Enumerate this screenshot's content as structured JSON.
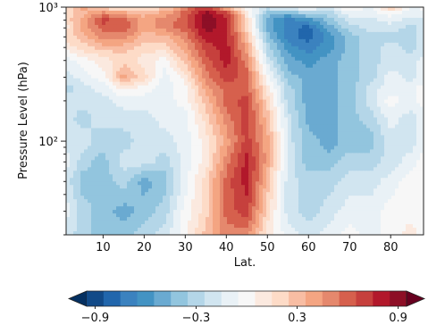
{
  "chart_data": {
    "type": "heatmap",
    "title": "",
    "xlabel": "Lat.",
    "ylabel": "Pressure Level (hPa)",
    "x": [
      1,
      5,
      10,
      15,
      20,
      25,
      30,
      35,
      40,
      45,
      50,
      55,
      60,
      65,
      70,
      75,
      80,
      85,
      88
    ],
    "y": [
      1000,
      900,
      800,
      700,
      600,
      500,
      400,
      300,
      250,
      200,
      150,
      100,
      70,
      50,
      30,
      20
    ],
    "xlim": [
      1,
      88
    ],
    "ylim": [
      1000,
      20
    ],
    "yscale": "log",
    "xticks": [
      10,
      20,
      30,
      40,
      50,
      60,
      70,
      80
    ],
    "xtick_labels": [
      "10",
      "20",
      "30",
      "40",
      "50",
      "60",
      "70",
      "80"
    ],
    "yticks": [
      1000,
      100
    ],
    "ytick_labels": [
      "10³",
      "10²"
    ],
    "values": [
      [
        0.1,
        0.4,
        0.2,
        0.1,
        0.2,
        0.2,
        0.5,
        0.7,
        0.3,
        0.0,
        -0.2,
        -0.1,
        0.0,
        -0.2,
        0.1,
        -0.1,
        0.3,
        -0.1,
        0.0
      ],
      [
        0.2,
        0.3,
        0.5,
        0.4,
        0.3,
        0.4,
        0.6,
        0.9,
        0.7,
        0.1,
        -0.4,
        -0.5,
        -0.3,
        -0.3,
        -0.1,
        -0.1,
        0.0,
        -0.1,
        -0.1
      ],
      [
        0.2,
        0.4,
        0.7,
        0.6,
        0.4,
        0.5,
        0.6,
        0.9,
        0.8,
        0.2,
        -0.5,
        -0.7,
        -0.6,
        -0.4,
        -0.2,
        -0.2,
        -0.1,
        -0.2,
        -0.2
      ],
      [
        0.1,
        0.4,
        0.6,
        0.6,
        0.4,
        0.5,
        0.6,
        0.9,
        0.8,
        0.2,
        -0.5,
        -0.7,
        -0.8,
        -0.5,
        -0.3,
        -0.2,
        -0.2,
        -0.3,
        -0.2
      ],
      [
        0.2,
        0.3,
        0.5,
        0.5,
        0.3,
        0.3,
        0.5,
        0.8,
        0.8,
        0.3,
        -0.4,
        -0.7,
        -0.8,
        -0.6,
        -0.4,
        -0.3,
        -0.3,
        -0.3,
        -0.2
      ],
      [
        0.1,
        0.2,
        0.3,
        0.3,
        0.2,
        0.2,
        0.4,
        0.7,
        0.8,
        0.4,
        -0.3,
        -0.6,
        -0.7,
        -0.6,
        -0.4,
        -0.3,
        -0.2,
        -0.3,
        -0.2
      ],
      [
        -0.1,
        0.0,
        0.1,
        0.2,
        0.1,
        0.0,
        0.3,
        0.6,
        0.8,
        0.5,
        -0.2,
        -0.5,
        -0.6,
        -0.5,
        -0.4,
        -0.3,
        -0.2,
        -0.2,
        -0.1
      ],
      [
        -0.2,
        -0.1,
        0.0,
        0.4,
        0.2,
        -0.1,
        0.1,
        0.5,
        0.7,
        0.6,
        0.0,
        -0.4,
        -0.5,
        -0.5,
        -0.4,
        -0.3,
        -0.1,
        -0.2,
        -0.1
      ],
      [
        -0.3,
        -0.2,
        -0.1,
        0.1,
        0.0,
        -0.1,
        0.0,
        0.4,
        0.6,
        0.6,
        0.1,
        -0.3,
        -0.5,
        -0.5,
        -0.4,
        -0.2,
        -0.1,
        -0.1,
        0.0
      ],
      [
        -0.2,
        -0.2,
        -0.2,
        -0.1,
        -0.1,
        -0.1,
        0.0,
        0.3,
        0.6,
        0.7,
        0.2,
        -0.3,
        -0.5,
        -0.5,
        -0.4,
        -0.2,
        0.0,
        -0.1,
        0.0
      ],
      [
        -0.2,
        -0.3,
        -0.2,
        -0.2,
        -0.2,
        -0.1,
        -0.1,
        0.2,
        0.5,
        0.7,
        0.3,
        -0.2,
        -0.5,
        -0.5,
        -0.4,
        -0.3,
        -0.1,
        -0.2,
        -0.1
      ],
      [
        -0.2,
        -0.2,
        -0.3,
        -0.3,
        -0.2,
        -0.2,
        -0.1,
        0.1,
        0.4,
        0.7,
        0.4,
        -0.2,
        -0.4,
        -0.5,
        -0.4,
        -0.4,
        -0.2,
        -0.2,
        -0.1
      ],
      [
        -0.1,
        -0.3,
        -0.4,
        -0.2,
        -0.2,
        -0.3,
        -0.1,
        0.1,
        0.5,
        0.8,
        0.4,
        -0.2,
        -0.4,
        -0.4,
        -0.3,
        -0.3,
        -0.2,
        -0.1,
        0.0
      ],
      [
        -0.2,
        -0.4,
        -0.4,
        -0.3,
        -0.5,
        -0.4,
        -0.1,
        0.2,
        0.6,
        0.8,
        0.3,
        -0.2,
        -0.3,
        -0.3,
        -0.2,
        -0.2,
        -0.1,
        0.0,
        0.0
      ],
      [
        -0.1,
        -0.3,
        -0.4,
        -0.5,
        -0.4,
        -0.3,
        0.0,
        0.2,
        0.6,
        0.7,
        0.2,
        -0.2,
        -0.3,
        -0.2,
        -0.1,
        -0.1,
        0.0,
        0.0,
        0.0
      ],
      [
        -0.2,
        -0.3,
        -0.4,
        -0.4,
        -0.3,
        -0.2,
        0.0,
        0.3,
        0.5,
        0.5,
        0.1,
        -0.1,
        -0.2,
        -0.1,
        0.0,
        -0.1,
        0.0,
        0.1,
        0.0
      ]
    ],
    "colorbar": {
      "vmin": -1.05,
      "vmax": 1.05,
      "levels": [
        -1.05,
        -0.95,
        -0.85,
        -0.75,
        -0.65,
        -0.55,
        -0.45,
        -0.35,
        -0.25,
        -0.15,
        -0.05,
        0.05,
        0.15,
        0.25,
        0.35,
        0.45,
        0.55,
        0.65,
        0.75,
        0.85,
        0.95,
        1.05
      ],
      "ticks": [
        -0.9,
        -0.3,
        0.3,
        0.9
      ],
      "tick_labels": [
        "−0.9",
        "−0.3",
        "0.3",
        "0.9"
      ],
      "extend": "both",
      "colormap": "RdBu_r",
      "colors": [
        "#053061",
        "#124a88",
        "#2166ac",
        "#3b82bf",
        "#4393c3",
        "#6aaad1",
        "#92c5de",
        "#b4d6e8",
        "#d1e5f0",
        "#e9f1f6",
        "#f7f7f7",
        "#fbe9df",
        "#fddbc7",
        "#f8bda3",
        "#f4a582",
        "#e5886d",
        "#d6604d",
        "#c6403d",
        "#b2182b",
        "#8d0f26",
        "#67001f"
      ]
    }
  }
}
